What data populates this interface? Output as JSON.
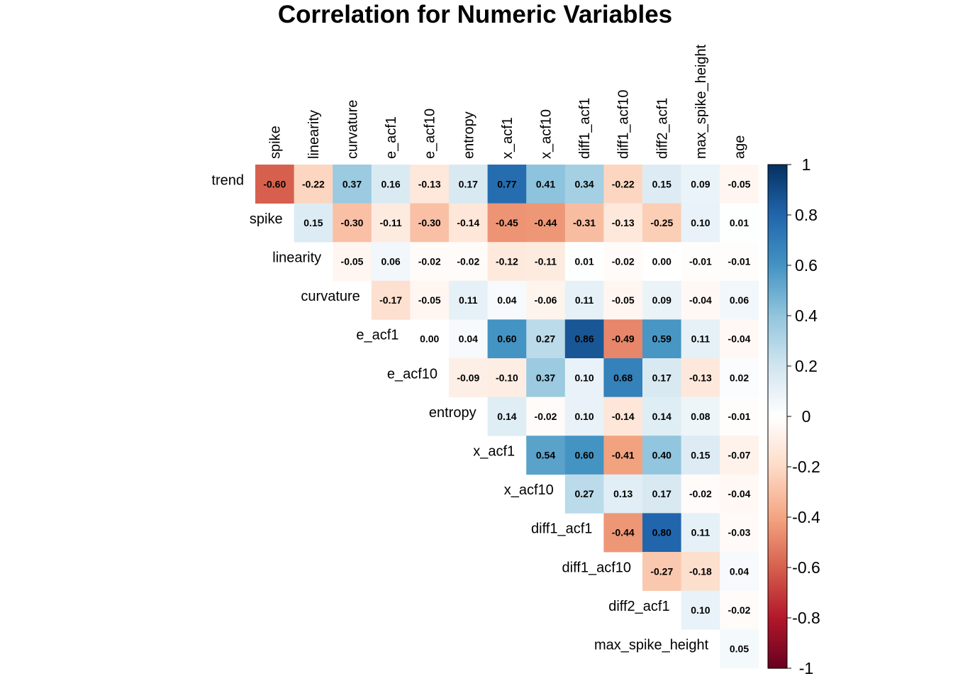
{
  "chart_data": {
    "type": "heatmap",
    "title": "Correlation for Numeric Variables",
    "layout": "upper-triangle",
    "row_labels": [
      "trend",
      "spike",
      "linearity",
      "curvature",
      "e_acf1",
      "e_acf10",
      "entropy",
      "x_acf1",
      "x_acf10",
      "diff1_acf1",
      "diff1_acf10",
      "diff2_acf1",
      "max_spike_height"
    ],
    "col_labels": [
      "spike",
      "linearity",
      "curvature",
      "e_acf1",
      "e_acf10",
      "entropy",
      "x_acf1",
      "x_acf10",
      "diff1_acf1",
      "diff1_acf10",
      "diff2_acf1",
      "max_spike_height",
      "age"
    ],
    "values": [
      [
        -0.6,
        -0.22,
        0.37,
        0.16,
        -0.13,
        0.17,
        0.77,
        0.41,
        0.34,
        -0.22,
        0.15,
        0.09,
        -0.05
      ],
      [
        0.15,
        -0.3,
        -0.11,
        -0.3,
        -0.14,
        -0.45,
        -0.44,
        -0.31,
        -0.13,
        -0.25,
        0.1,
        0.01
      ],
      [
        -0.05,
        0.06,
        -0.02,
        -0.02,
        -0.12,
        -0.11,
        0.01,
        -0.02,
        0.0,
        -0.01,
        -0.01
      ],
      [
        -0.17,
        -0.05,
        0.11,
        0.04,
        -0.06,
        0.11,
        -0.05,
        0.09,
        -0.04,
        0.06
      ],
      [
        0.0,
        0.04,
        0.6,
        0.27,
        0.86,
        -0.49,
        0.59,
        0.11,
        -0.04
      ],
      [
        -0.09,
        -0.1,
        0.37,
        0.1,
        0.68,
        0.17,
        -0.13,
        0.02
      ],
      [
        0.14,
        -0.02,
        0.1,
        -0.14,
        0.14,
        0.08,
        -0.01
      ],
      [
        0.54,
        0.6,
        -0.41,
        0.4,
        0.15,
        -0.07
      ],
      [
        0.27,
        0.13,
        0.17,
        -0.02,
        -0.04
      ],
      [
        -0.44,
        0.8,
        0.11,
        -0.03
      ],
      [
        -0.27,
        -0.18,
        0.04
      ],
      [
        0.1,
        -0.02
      ],
      [
        0.05
      ]
    ],
    "colorbar": {
      "range": [
        -1,
        1
      ],
      "tick_labels": [
        "1",
        "0.8",
        "0.6",
        "0.4",
        "0.2",
        "0",
        "-0.2",
        "-0.4",
        "-0.6",
        "-0.8",
        "-1"
      ]
    },
    "colors": {
      "neg_extreme": "#67001F",
      "neg_strong": "#B2182B",
      "neg_mid": "#D6604D",
      "neg_light": "#F4A582",
      "neg_pale": "#FDDBC7",
      "zero": "#FFFFFF",
      "pos_pale": "#D1E5F0",
      "pos_light": "#92C5DE",
      "pos_mid": "#4393C3",
      "pos_strong": "#2166AC",
      "pos_extreme": "#053061"
    }
  }
}
